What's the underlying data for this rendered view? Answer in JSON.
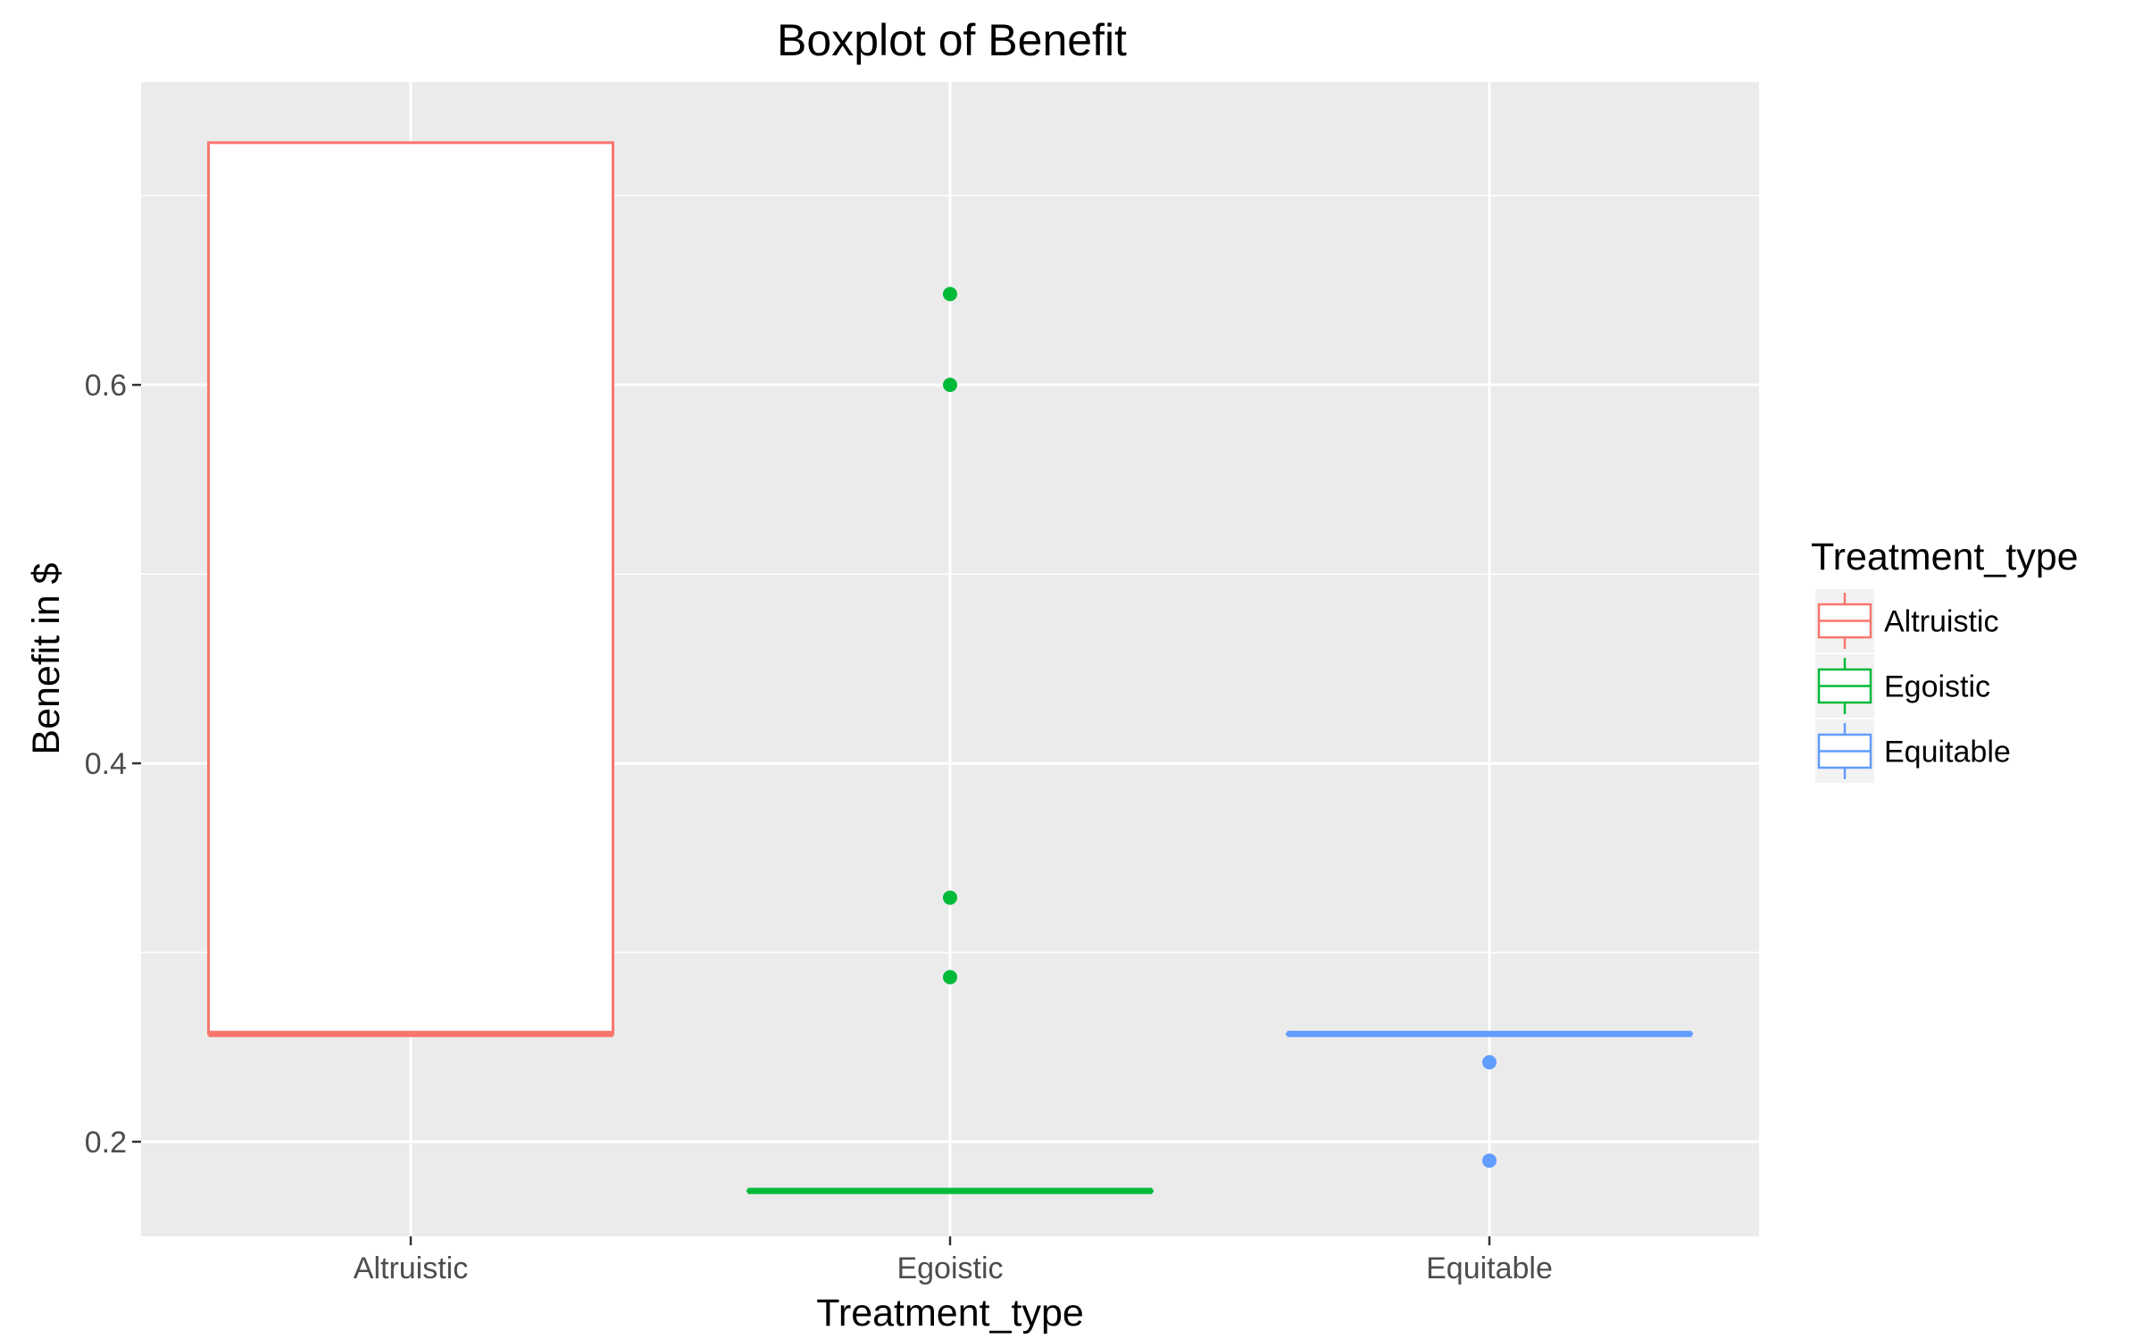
{
  "chart_data": {
    "type": "boxplot",
    "title": "Boxplot of Benefit",
    "xlabel": "Treatment_type",
    "ylabel": "Benefit in $",
    "categories": [
      "Altruistic",
      "Egoistic",
      "Equitable"
    ],
    "ylim": [
      0.15,
      0.76
    ],
    "yticks": [
      0.2,
      0.4,
      0.6
    ],
    "ytick_labels": [
      "0.2",
      "0.4",
      "0.6"
    ],
    "y_minor_gridlines": [
      0.3,
      0.5,
      0.7
    ],
    "grid": true,
    "legend": {
      "title": "Treatment_type",
      "position": "right",
      "entries": [
        "Altruistic",
        "Egoistic",
        "Equitable"
      ]
    },
    "series": [
      {
        "category": "Altruistic",
        "color": "#F8766D",
        "q1": 0.257,
        "median": 0.257,
        "q3": 0.728,
        "whisker_low": 0.257,
        "whisker_high": 0.728,
        "outliers": []
      },
      {
        "category": "Egoistic",
        "color": "#00BA38",
        "q1": 0.174,
        "median": 0.174,
        "q3": 0.174,
        "whisker_low": 0.174,
        "whisker_high": 0.174,
        "outliers": [
          0.648,
          0.6,
          0.329,
          0.287
        ]
      },
      {
        "category": "Equitable",
        "color": "#619CFF",
        "q1": 0.257,
        "median": 0.257,
        "q3": 0.257,
        "whisker_low": 0.257,
        "whisker_high": 0.257,
        "outliers": [
          0.242,
          0.19
        ]
      }
    ]
  }
}
